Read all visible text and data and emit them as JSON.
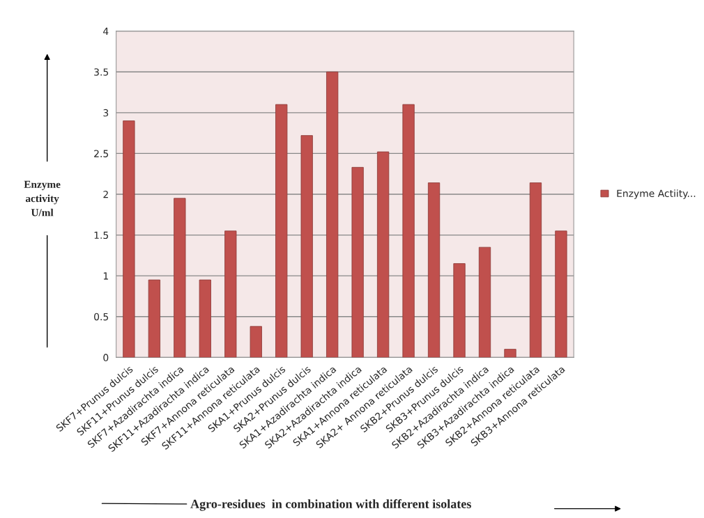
{
  "chart_data": {
    "type": "bar",
    "xlabel": "Agro-residues  in combination with different isolates",
    "ylabel": "Enzyme\nactivity\nU/ml",
    "categories": [
      "SKF7+Prunus dulcis",
      "SKF11+Prunus dulcis",
      "SKF7+Azadirachta indica",
      "SKF11+Azadirachta indica",
      "SKF7+Annona reticulata",
      "SKF11+Annona reticulata",
      "SKA1+Prunus dulcis",
      "SKA2+Prunus dulcis",
      "SKA1+Azadirachta indica",
      "SKA2+Azadirachta indica",
      "SKA1+Annona reticulata",
      "SKA2+ Annona reticulata",
      "SKB2+Prunus dulcis",
      "SKB3+Prunus dulcis",
      "SKB2+Azadirachta indica",
      "SKB3+Azadirachta indica",
      "SKB2+Annona reticulata",
      "SKB3+Annona reticulata"
    ],
    "series": [
      {
        "name": "Enzyme Actiity...",
        "color": "#c0504d",
        "values": [
          2.9,
          0.95,
          1.95,
          0.95,
          1.55,
          0.38,
          3.1,
          2.72,
          3.5,
          2.33,
          2.52,
          3.1,
          2.14,
          1.15,
          1.35,
          0.1,
          2.14,
          1.55
        ]
      }
    ],
    "ylim": [
      0,
      4
    ],
    "yticks": [
      0,
      0.5,
      1,
      1.5,
      2,
      2.5,
      3,
      3.5,
      4
    ],
    "grid": "y",
    "legend": "right"
  }
}
